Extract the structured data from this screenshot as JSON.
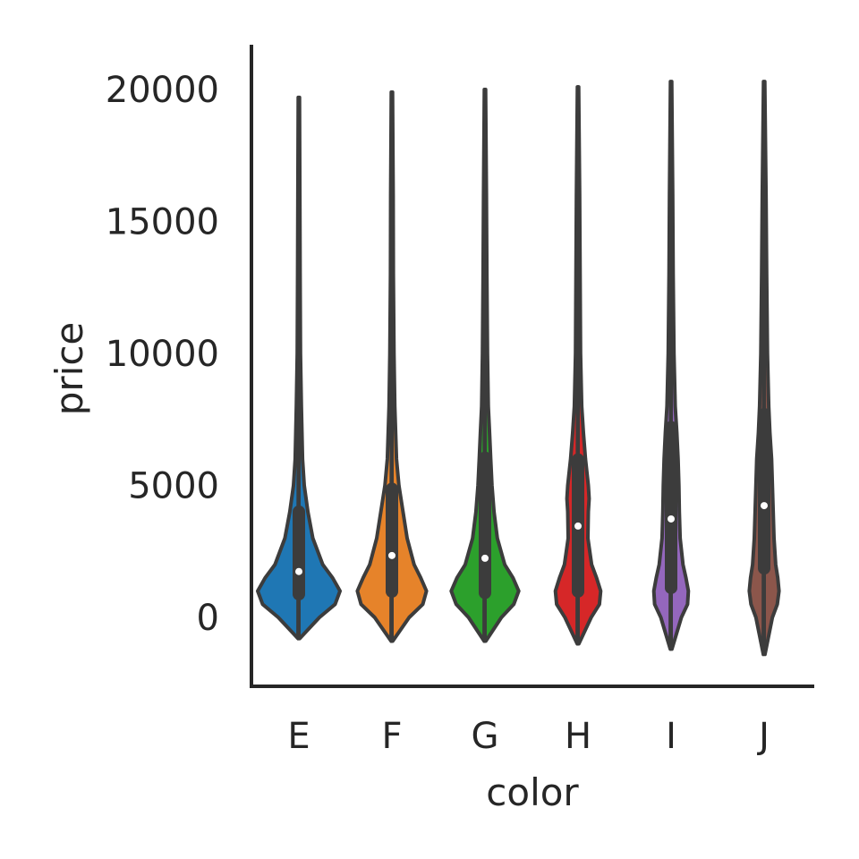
{
  "chart_data": {
    "type": "violin",
    "title": "",
    "xlabel": "color",
    "ylabel": "price",
    "categories": [
      "E",
      "F",
      "G",
      "H",
      "I",
      "J"
    ],
    "colors": [
      "#1f77b4",
      "#e6832a",
      "#2ca02c",
      "#d62728",
      "#9467bd",
      "#8c564b"
    ],
    "ylim": [
      -2500,
      21800
    ],
    "yticks": [
      0,
      5000,
      10000,
      15000,
      20000
    ],
    "grid": false,
    "legend": "none",
    "series": [
      {
        "category": "E",
        "min": 326,
        "q1": 880,
        "median": 1739,
        "q3": 4003,
        "max": 18731,
        "kde_min": -800,
        "kde_max": 19700,
        "density": [
          [
            -800,
            0.02
          ],
          [
            0,
            0.5
          ],
          [
            500,
            0.88
          ],
          [
            1000,
            1.0
          ],
          [
            1500,
            0.82
          ],
          [
            2000,
            0.58
          ],
          [
            3000,
            0.34
          ],
          [
            4000,
            0.22
          ],
          [
            5000,
            0.13
          ],
          [
            6000,
            0.09
          ],
          [
            8000,
            0.06
          ],
          [
            10000,
            0.04
          ],
          [
            13000,
            0.03
          ],
          [
            16000,
            0.025
          ],
          [
            19700,
            0.015
          ]
        ]
      },
      {
        "category": "F",
        "min": 342,
        "q1": 982,
        "median": 2344,
        "q3": 4868,
        "max": 18791,
        "kde_min": -900,
        "kde_max": 19900,
        "density": [
          [
            -900,
            0.02
          ],
          [
            0,
            0.42
          ],
          [
            500,
            0.75
          ],
          [
            1000,
            0.84
          ],
          [
            1500,
            0.7
          ],
          [
            2000,
            0.54
          ],
          [
            3000,
            0.37
          ],
          [
            4000,
            0.27
          ],
          [
            5000,
            0.17
          ],
          [
            6000,
            0.11
          ],
          [
            8000,
            0.07
          ],
          [
            10000,
            0.05
          ],
          [
            13000,
            0.035
          ],
          [
            16000,
            0.03
          ],
          [
            19900,
            0.015
          ]
        ]
      },
      {
        "category": "G",
        "min": 354,
        "q1": 931,
        "median": 2242,
        "q3": 6048,
        "max": 18818,
        "kde_min": -900,
        "kde_max": 20000,
        "density": [
          [
            -900,
            0.02
          ],
          [
            0,
            0.4
          ],
          [
            500,
            0.7
          ],
          [
            1000,
            0.82
          ],
          [
            1500,
            0.68
          ],
          [
            2000,
            0.48
          ],
          [
            3000,
            0.3
          ],
          [
            4000,
            0.22
          ],
          [
            5000,
            0.17
          ],
          [
            6000,
            0.14
          ],
          [
            7000,
            0.11
          ],
          [
            8000,
            0.08
          ],
          [
            10000,
            0.06
          ],
          [
            13000,
            0.045
          ],
          [
            16000,
            0.035
          ],
          [
            20000,
            0.015
          ]
        ]
      },
      {
        "category": "H",
        "min": 337,
        "q1": 984,
        "median": 3460,
        "q3": 5980,
        "max": 18803,
        "kde_min": -1000,
        "kde_max": 20100,
        "density": [
          [
            -1000,
            0.02
          ],
          [
            0,
            0.32
          ],
          [
            500,
            0.52
          ],
          [
            1000,
            0.55
          ],
          [
            1500,
            0.45
          ],
          [
            2000,
            0.33
          ],
          [
            3000,
            0.24
          ],
          [
            4000,
            0.25
          ],
          [
            4500,
            0.27
          ],
          [
            5000,
            0.25
          ],
          [
            6000,
            0.18
          ],
          [
            7000,
            0.13
          ],
          [
            8000,
            0.09
          ],
          [
            10000,
            0.06
          ],
          [
            13000,
            0.05
          ],
          [
            16000,
            0.04
          ],
          [
            20100,
            0.015
          ]
        ]
      },
      {
        "category": "I",
        "min": 334,
        "q1": 1120,
        "median": 3730,
        "q3": 7202,
        "max": 18823,
        "kde_min": -1200,
        "kde_max": 20300,
        "density": [
          [
            -1200,
            0.02
          ],
          [
            0,
            0.25
          ],
          [
            500,
            0.4
          ],
          [
            1000,
            0.42
          ],
          [
            1500,
            0.36
          ],
          [
            2000,
            0.29
          ],
          [
            3000,
            0.22
          ],
          [
            4000,
            0.2
          ],
          [
            5000,
            0.19
          ],
          [
            6000,
            0.17
          ],
          [
            7000,
            0.14
          ],
          [
            8000,
            0.1
          ],
          [
            10000,
            0.07
          ],
          [
            13000,
            0.05
          ],
          [
            16000,
            0.04
          ],
          [
            20300,
            0.015
          ]
        ]
      },
      {
        "category": "J",
        "min": 335,
        "q1": 1860,
        "median": 4234,
        "q3": 7695,
        "max": 18710,
        "kde_min": -1400,
        "kde_max": 20300,
        "density": [
          [
            -1400,
            0.02
          ],
          [
            0,
            0.2
          ],
          [
            500,
            0.32
          ],
          [
            1000,
            0.36
          ],
          [
            1500,
            0.33
          ],
          [
            2000,
            0.28
          ],
          [
            3000,
            0.24
          ],
          [
            4000,
            0.22
          ],
          [
            5000,
            0.2
          ],
          [
            6000,
            0.18
          ],
          [
            7000,
            0.14
          ],
          [
            8000,
            0.11
          ],
          [
            10000,
            0.08
          ],
          [
            13000,
            0.06
          ],
          [
            16000,
            0.045
          ],
          [
            20300,
            0.015
          ]
        ]
      }
    ]
  }
}
